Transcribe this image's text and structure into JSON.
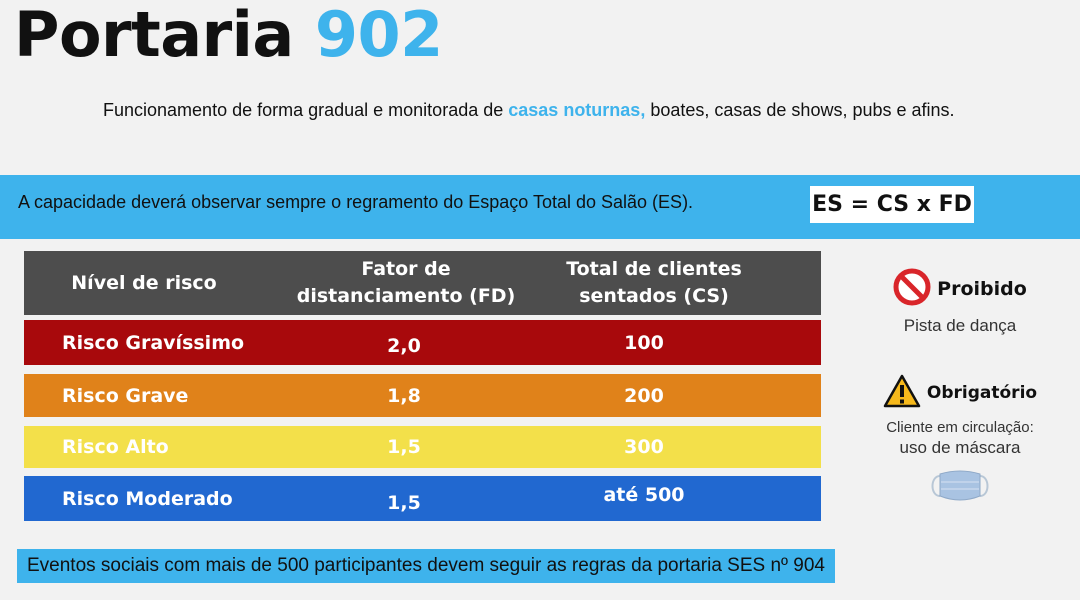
{
  "header": {
    "title_prefix": "Portaria",
    "title_number": "902",
    "subtitle_before": "Funcionamento de forma gradual e monitorada de",
    "subtitle_highlight": "casas noturnas,",
    "subtitle_after": "boates, casas de shows, pubs e afins."
  },
  "banner": {
    "text": "A capacidade deverá observar sempre o regramento do Espaço Total do Salão (ES).",
    "formula": "ES = CS x FD"
  },
  "table": {
    "headers": {
      "level": "Nível de risco",
      "fd_line1": "Fator de",
      "fd_line2": "distanciamento (FD)",
      "cs_line1": "Total de clientes",
      "cs_line2": "sentados (CS)"
    },
    "header_color": "#4d4d4d",
    "rows": [
      {
        "level": "Risco Gravíssimo",
        "fd": "2,0",
        "cs": "100",
        "color": "#a8090c",
        "text_color": "#ffffff"
      },
      {
        "level": "Risco Grave",
        "fd": "1,8",
        "cs": "200",
        "color": "#e0821a",
        "text_color": "#ffffff"
      },
      {
        "level": "Risco Alto",
        "fd": "1,5",
        "cs": "300",
        "color": "#f3e04a",
        "text_color": "#ffffff"
      },
      {
        "level": "Risco Moderado",
        "fd": "1,5",
        "cs": "até 500",
        "color": "#2168d0",
        "text_color": "#ffffff"
      }
    ]
  },
  "side": {
    "prohibited": {
      "icon": "prohibited-icon",
      "title": "Proibido",
      "text": "Pista de dança"
    },
    "mandatory": {
      "icon": "warning-icon",
      "title": "Obrigatório",
      "text_line1": "Cliente em circulação:",
      "text_line2": "uso de máscara",
      "image": "mask-icon"
    }
  },
  "footer": {
    "text": "Eventos sociais com mais de 500 participantes devem seguir as regras da portaria SES nº 904"
  },
  "colors": {
    "accent": "#3eb3ec",
    "background": "#f2f2f2"
  }
}
